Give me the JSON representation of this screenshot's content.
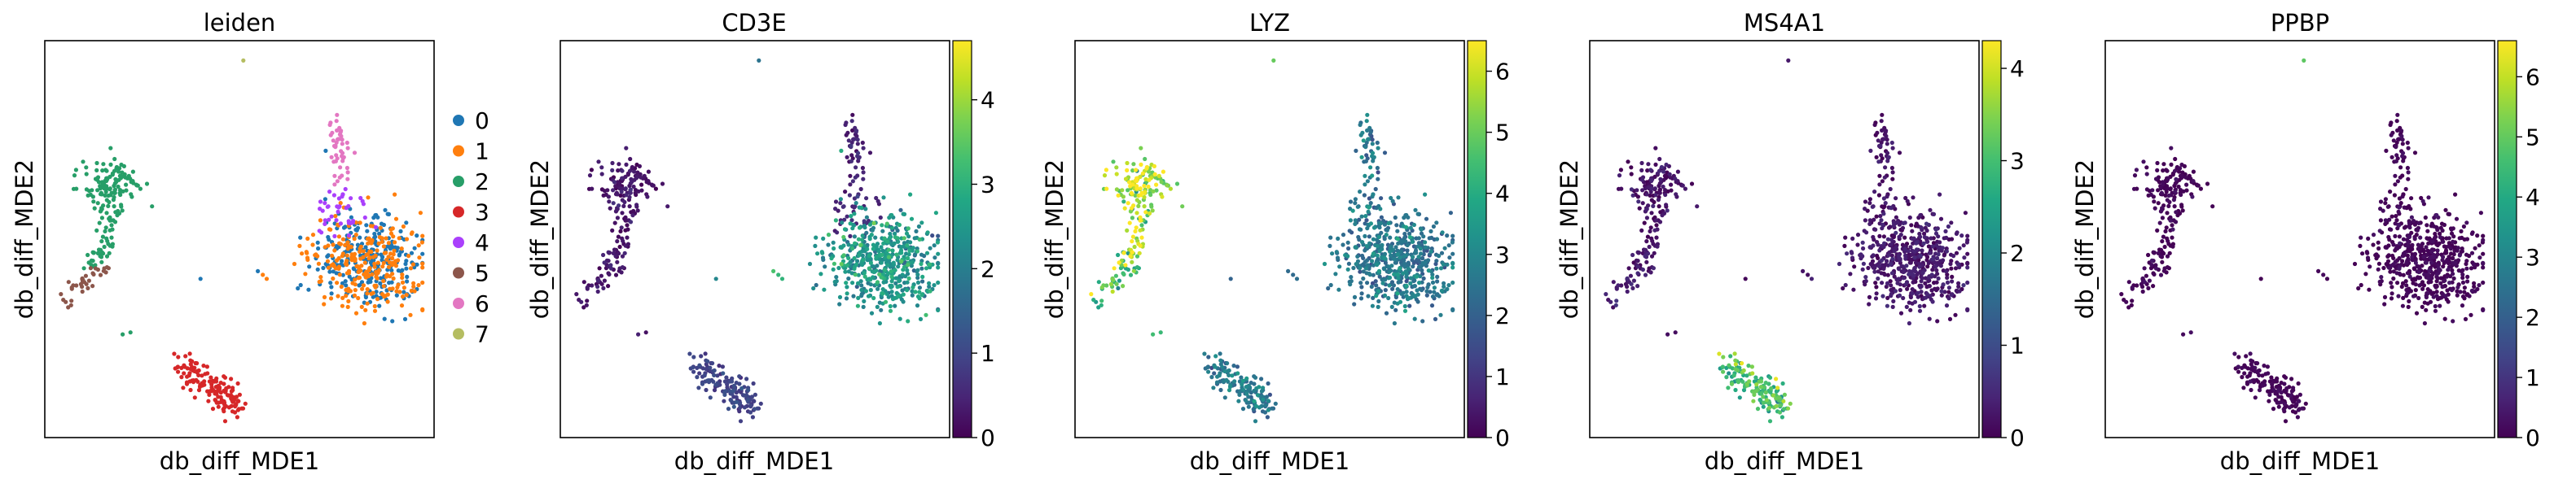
{
  "figure": {
    "panels": [
      {
        "title": "leiden",
        "xlabel": "db_diff_MDE1",
        "ylabel": "db_diff_MDE2",
        "kind": "categorical"
      },
      {
        "title": "CD3E",
        "xlabel": "db_diff_MDE1",
        "ylabel": "db_diff_MDE2",
        "kind": "continuous"
      },
      {
        "title": "LYZ",
        "xlabel": "db_diff_MDE1",
        "ylabel": "db_diff_MDE2",
        "kind": "continuous"
      },
      {
        "title": "MS4A1",
        "xlabel": "db_diff_MDE1",
        "ylabel": "db_diff_MDE2",
        "kind": "continuous"
      },
      {
        "title": "PPBP",
        "xlabel": "db_diff_MDE1",
        "ylabel": "db_diff_MDE2",
        "kind": "continuous"
      }
    ]
  },
  "chart_data": [
    {
      "type": "scatter",
      "title": "leiden",
      "xlabel": "db_diff_MDE1",
      "ylabel": "db_diff_MDE2",
      "legend_position": "right",
      "categories": [
        "0",
        "1",
        "2",
        "3",
        "4",
        "5",
        "6",
        "7"
      ],
      "colors": [
        "#1f77b4",
        "#ff7f0e",
        "#279e68",
        "#d62728",
        "#aa40fc",
        "#8c564b",
        "#e377c2",
        "#b5bd61"
      ]
    },
    {
      "type": "scatter",
      "title": "CD3E",
      "xlabel": "db_diff_MDE1",
      "ylabel": "db_diff_MDE2",
      "colormap": "viridis",
      "colorbar_range": [
        0,
        4.7
      ],
      "colorbar_ticks": [
        0,
        1,
        2,
        3,
        4
      ],
      "cluster_levels": {
        "0": 2.4,
        "1": 2.4,
        "2": 0.3,
        "3": 0.9,
        "4": 0.5,
        "5": 0.3,
        "6": 0.4,
        "7": 1.5
      }
    },
    {
      "type": "scatter",
      "title": "LYZ",
      "xlabel": "db_diff_MDE1",
      "ylabel": "db_diff_MDE2",
      "colormap": "viridis",
      "colorbar_range": [
        0,
        6.5
      ],
      "colorbar_ticks": [
        0,
        1,
        2,
        3,
        4,
        5,
        6
      ],
      "cluster_levels": {
        "0": 2.4,
        "1": 2.6,
        "2": 5.6,
        "3": 2.5,
        "4": 2.5,
        "5": 4.5,
        "6": 2.6,
        "7": 5.0
      }
    },
    {
      "type": "scatter",
      "title": "MS4A1",
      "xlabel": "db_diff_MDE1",
      "ylabel": "db_diff_MDE2",
      "colormap": "viridis",
      "colorbar_range": [
        0,
        4.3
      ],
      "colorbar_ticks": [
        0,
        1,
        2,
        3,
        4
      ],
      "cluster_levels": {
        "0": 0.2,
        "1": 0.3,
        "2": 0.2,
        "3": 2.9,
        "4": 0.2,
        "5": 0.3,
        "6": 0.2,
        "7": 0.5
      }
    },
    {
      "type": "scatter",
      "title": "PPBP",
      "xlabel": "db_diff_MDE1",
      "ylabel": "db_diff_MDE2",
      "colormap": "viridis",
      "colorbar_range": [
        0,
        6.6
      ],
      "colorbar_ticks": [
        0,
        1,
        2,
        3,
        4,
        5,
        6
      ],
      "cluster_levels": {
        "0": 0.05,
        "1": 0.05,
        "2": 0.05,
        "3": 0.05,
        "4": 0.05,
        "5": 0.05,
        "6": 0.05,
        "7": 6.5
      }
    }
  ]
}
